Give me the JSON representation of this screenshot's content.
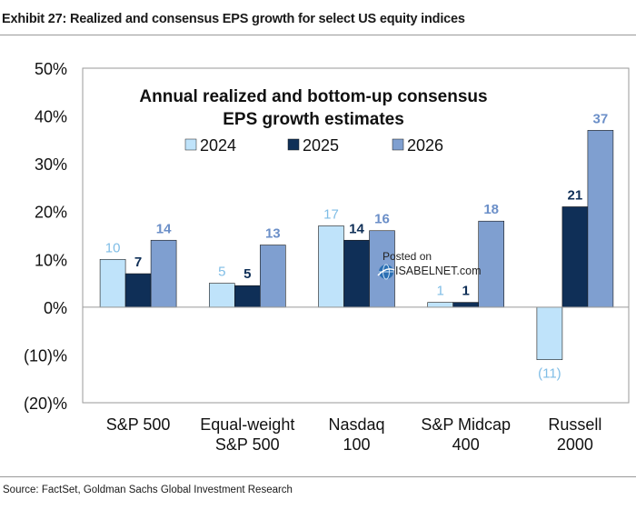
{
  "exhibit_title": "Exhibit 27: Realized and consensus EPS growth for select US equity indices",
  "source": "Source: FactSet, Goldman Sachs Global Investment Research",
  "watermark": {
    "line1": "Posted on",
    "line2": "ISABELNET.com"
  },
  "colors": {
    "2024": "#bfe3fa",
    "2025": "#0f2f57",
    "2026": "#7f9fd0",
    "label_2024": "#7fbde6",
    "label_2026": "#6b8fc8"
  },
  "chart_data": {
    "type": "bar",
    "title_line1": "Annual realized and bottom-up consensus",
    "title_line2": "EPS growth estimates",
    "categories": [
      [
        "S&P 500"
      ],
      [
        "Equal-weight",
        "S&P 500"
      ],
      [
        "Nasdaq",
        "100"
      ],
      [
        "S&P Midcap",
        "400"
      ],
      [
        "Russell",
        "2000"
      ]
    ],
    "series": [
      {
        "name": "2024",
        "values": [
          10,
          5,
          17,
          1,
          -11
        ],
        "labels": [
          "10",
          "5",
          "17",
          "1",
          "(11)"
        ]
      },
      {
        "name": "2025",
        "values": [
          7,
          4.5,
          14,
          1,
          21
        ],
        "labels": [
          "7",
          "5",
          "14",
          "1",
          "21"
        ]
      },
      {
        "name": "2026",
        "values": [
          14,
          13,
          16,
          18,
          37
        ],
        "labels": [
          "14",
          "13",
          "16",
          "18",
          "37"
        ]
      }
    ],
    "ylim": [
      -20,
      50
    ],
    "yticks": [
      50,
      40,
      30,
      20,
      10,
      0,
      -10,
      -20
    ],
    "ytick_labels": [
      "50%",
      "40%",
      "30%",
      "20%",
      "10%",
      "0%",
      "(10)%",
      "(20)%"
    ],
    "legend_position": "top-center",
    "grid": false
  }
}
